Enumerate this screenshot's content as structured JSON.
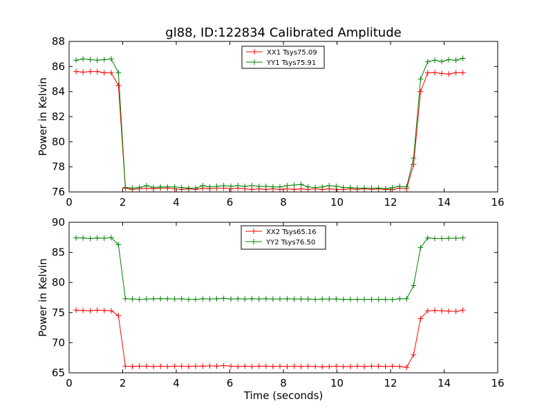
{
  "figure": {
    "title": "gl88, ID:122834 Calibrated Amplitude"
  },
  "chart_data": [
    {
      "type": "line",
      "title": "gl88, ID:122834 Calibrated Amplitude",
      "xlabel": "",
      "ylabel": "Power in Kelvin",
      "xlim": [
        0,
        16
      ],
      "ylim": [
        76,
        88
      ],
      "xticks": [
        0,
        2,
        4,
        6,
        8,
        10,
        12,
        14,
        16
      ],
      "yticks": [
        76,
        78,
        80,
        82,
        84,
        86,
        88
      ],
      "grid": false,
      "legend_position": "top-center",
      "x": [
        0.26,
        0.52,
        0.79,
        1.05,
        1.31,
        1.57,
        1.84,
        2.1,
        2.36,
        2.62,
        2.89,
        3.15,
        3.41,
        3.67,
        3.94,
        4.2,
        4.46,
        4.72,
        4.99,
        5.25,
        5.51,
        5.77,
        6.04,
        6.3,
        6.56,
        6.82,
        7.09,
        7.35,
        7.61,
        7.87,
        8.14,
        8.4,
        8.66,
        8.92,
        9.19,
        9.45,
        9.71,
        9.97,
        10.24,
        10.5,
        10.76,
        11.02,
        11.29,
        11.55,
        11.81,
        12.07,
        12.34,
        12.6,
        12.86,
        13.12,
        13.39,
        13.65,
        13.91,
        14.17,
        14.44,
        14.7
      ],
      "series": [
        {
          "name": "XX1 Tsys75.09",
          "color": "#ff0000",
          "values": [
            85.6,
            85.55,
            85.6,
            85.6,
            85.5,
            85.5,
            84.5,
            76.3,
            76.2,
            76.25,
            76.3,
            76.25,
            76.3,
            76.3,
            76.25,
            76.2,
            76.25,
            76.2,
            76.3,
            76.25,
            76.3,
            76.3,
            76.25,
            76.3,
            76.25,
            76.2,
            76.25,
            76.2,
            76.25,
            76.2,
            76.25,
            76.2,
            76.25,
            76.2,
            76.25,
            76.2,
            76.25,
            76.2,
            76.2,
            76.25,
            76.2,
            76.25,
            76.2,
            76.25,
            76.2,
            76.2,
            76.3,
            76.25,
            78.2,
            84.0,
            85.5,
            85.5,
            85.45,
            85.4,
            85.5,
            85.5
          ]
        },
        {
          "name": "YY1 Tsys75.91",
          "color": "#008000",
          "values": [
            86.5,
            86.6,
            86.55,
            86.5,
            86.55,
            86.6,
            85.5,
            76.35,
            76.3,
            76.35,
            76.5,
            76.35,
            76.4,
            76.4,
            76.4,
            76.35,
            76.3,
            76.3,
            76.5,
            76.4,
            76.45,
            76.5,
            76.45,
            76.5,
            76.45,
            76.5,
            76.45,
            76.45,
            76.4,
            76.4,
            76.5,
            76.55,
            76.6,
            76.4,
            76.35,
            76.4,
            76.5,
            76.45,
            76.35,
            76.35,
            76.3,
            76.3,
            76.3,
            76.3,
            76.25,
            76.35,
            76.45,
            76.4,
            78.7,
            85.0,
            86.4,
            86.5,
            86.4,
            86.55,
            86.5,
            86.65
          ]
        }
      ]
    },
    {
      "type": "line",
      "title": "",
      "xlabel": "Time (seconds)",
      "ylabel": "Power in Kelvin",
      "xlim": [
        0,
        16
      ],
      "ylim": [
        65,
        90
      ],
      "xticks": [
        0,
        2,
        4,
        6,
        8,
        10,
        12,
        14,
        16
      ],
      "yticks": [
        65,
        70,
        75,
        80,
        85,
        90
      ],
      "grid": false,
      "legend_position": "top-center",
      "x": [
        0.26,
        0.52,
        0.79,
        1.05,
        1.31,
        1.57,
        1.84,
        2.1,
        2.36,
        2.62,
        2.89,
        3.15,
        3.41,
        3.67,
        3.94,
        4.2,
        4.46,
        4.72,
        4.99,
        5.25,
        5.51,
        5.77,
        6.04,
        6.3,
        6.56,
        6.82,
        7.09,
        7.35,
        7.61,
        7.87,
        8.14,
        8.4,
        8.66,
        8.92,
        9.19,
        9.45,
        9.71,
        9.97,
        10.24,
        10.5,
        10.76,
        11.02,
        11.29,
        11.55,
        11.81,
        12.07,
        12.34,
        12.6,
        12.86,
        13.12,
        13.39,
        13.65,
        13.91,
        14.17,
        14.44,
        14.7
      ],
      "series": [
        {
          "name": "XX2 Tsys65.16",
          "color": "#ff0000",
          "values": [
            75.4,
            75.35,
            75.3,
            75.4,
            75.35,
            75.3,
            74.5,
            66.1,
            66.05,
            66.1,
            66.1,
            66.05,
            66.1,
            66.05,
            66.1,
            66.1,
            66.05,
            66.1,
            66.1,
            66.15,
            66.1,
            66.2,
            66.1,
            66.05,
            66.1,
            66.05,
            66.1,
            66.1,
            66.05,
            66.1,
            66.05,
            66.1,
            66.05,
            66.1,
            66.05,
            66.0,
            66.05,
            66.1,
            66.05,
            66.05,
            66.1,
            66.05,
            66.1,
            66.1,
            66.05,
            66.1,
            66.05,
            65.9,
            68.0,
            74.0,
            75.3,
            75.35,
            75.3,
            75.25,
            75.2,
            75.4
          ]
        },
        {
          "name": "YY2 Tsys76.50",
          "color": "#008000",
          "values": [
            87.4,
            87.4,
            87.3,
            87.4,
            87.35,
            87.45,
            86.3,
            77.3,
            77.25,
            77.2,
            77.25,
            77.3,
            77.3,
            77.3,
            77.25,
            77.3,
            77.2,
            77.2,
            77.3,
            77.25,
            77.3,
            77.35,
            77.25,
            77.3,
            77.25,
            77.3,
            77.25,
            77.3,
            77.25,
            77.25,
            77.3,
            77.25,
            77.25,
            77.25,
            77.2,
            77.25,
            77.25,
            77.25,
            77.2,
            77.2,
            77.2,
            77.2,
            77.2,
            77.2,
            77.2,
            77.15,
            77.3,
            77.3,
            79.5,
            85.8,
            87.4,
            87.3,
            87.3,
            87.35,
            87.35,
            87.4
          ]
        }
      ]
    }
  ]
}
